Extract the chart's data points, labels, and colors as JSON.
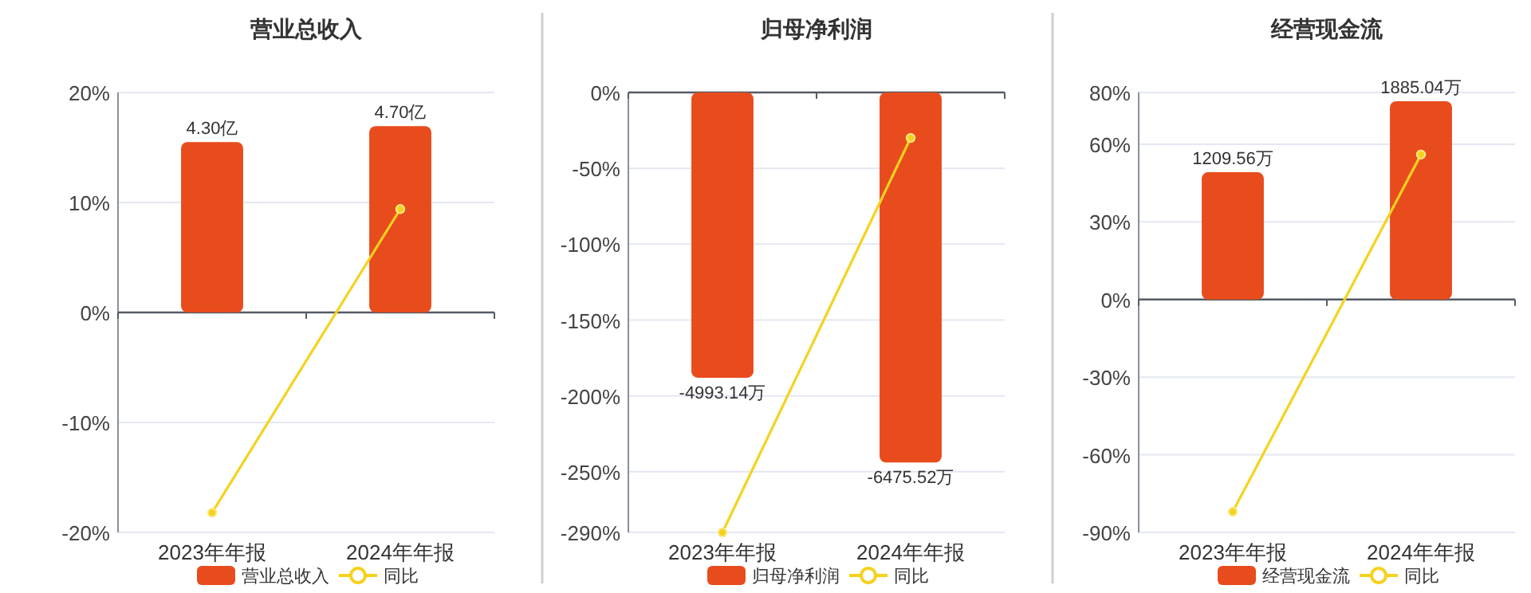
{
  "chart_data": [
    {
      "type": "bar",
      "title": "营业总收入",
      "categories": [
        "2023年年报",
        "2024年年报"
      ],
      "series": [
        {
          "name": "营业总收入",
          "axis": "y2",
          "color": "#e84c1d",
          "values": [
            4.3,
            4.7
          ],
          "value_labels": [
            "4.30亿",
            "4.70亿"
          ]
        },
        {
          "name": "同比",
          "type": "line",
          "color": "#f5d21f",
          "marker": "circle",
          "values": [
            -18.2,
            9.4
          ]
        }
      ],
      "ylim": [
        -20,
        20
      ],
      "yticks": [
        {
          "value": 20,
          "label": "20%"
        },
        {
          "value": 10,
          "label": "10%"
        },
        {
          "value": 0,
          "label": "0%"
        },
        {
          "value": -10,
          "label": "-10%"
        },
        {
          "value": -20,
          "label": "-20%"
        }
      ],
      "y2lim": [
        -5.55,
        5.55
      ],
      "grid": "y",
      "legend": "bottom"
    },
    {
      "type": "bar",
      "title": "归母净利润",
      "categories": [
        "2023年年报",
        "2024年年报"
      ],
      "series": [
        {
          "name": "归母净利润",
          "axis": "y2",
          "color": "#e84c1d",
          "values": [
            -4993.14,
            -6475.52
          ],
          "value_labels": [
            "-4993.14万",
            "-6475.52万"
          ]
        },
        {
          "name": "同比",
          "type": "line",
          "color": "#f5d21f",
          "marker": "circle",
          "values": [
            -290,
            -30
          ]
        }
      ],
      "ylim": [
        -290,
        0
      ],
      "yticks": [
        {
          "value": 0,
          "label": "0%"
        },
        {
          "value": -50,
          "label": "-50%"
        },
        {
          "value": -100,
          "label": "-100%"
        },
        {
          "value": -150,
          "label": "-150%"
        },
        {
          "value": -200,
          "label": "-200%"
        },
        {
          "value": -250,
          "label": "-250%"
        },
        {
          "value": -290,
          "label": "-290%"
        }
      ],
      "y2lim": [
        -7700,
        0
      ],
      "grid": "y",
      "legend": "bottom"
    },
    {
      "type": "bar",
      "title": "经营现金流",
      "categories": [
        "2023年年报",
        "2024年年报"
      ],
      "series": [
        {
          "name": "经营现金流",
          "axis": "y2",
          "color": "#e84c1d",
          "values": [
            1209.56,
            1885.04
          ],
          "value_labels": [
            "1209.56万",
            "1885.04万"
          ]
        },
        {
          "name": "同比",
          "type": "line",
          "color": "#f5d21f",
          "marker": "circle",
          "values": [
            -82,
            56
          ]
        }
      ],
      "ylim": [
        -90,
        80
      ],
      "yticks": [
        {
          "value": 80,
          "label": "80%"
        },
        {
          "value": 60,
          "label": "60%"
        },
        {
          "value": 30,
          "label": "30%"
        },
        {
          "value": 0,
          "label": "0%"
        },
        {
          "value": -30,
          "label": "-30%"
        },
        {
          "value": -60,
          "label": "-60%"
        },
        {
          "value": -90,
          "label": "-90%"
        }
      ],
      "y2lim": [
        -2214,
        1968
      ],
      "grid": "y",
      "legend": "bottom"
    }
  ]
}
